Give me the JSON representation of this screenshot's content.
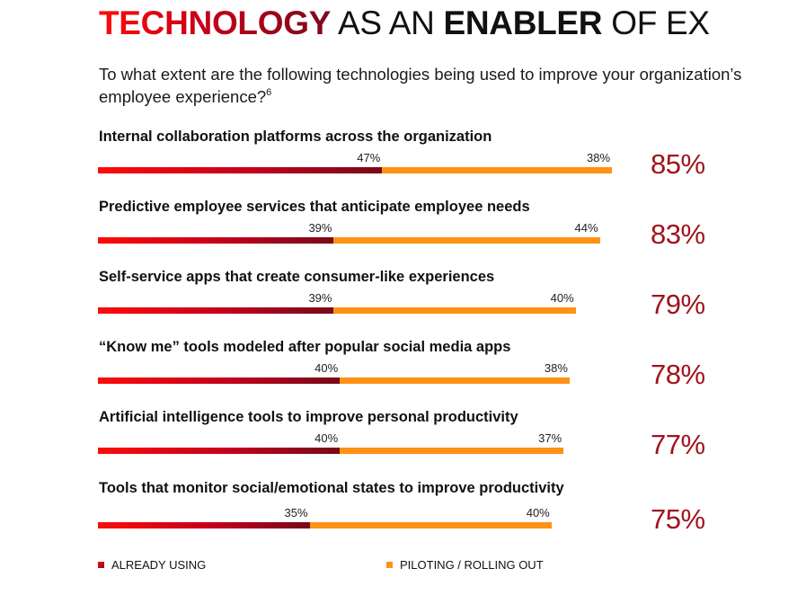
{
  "title": {
    "part1": "TECHNOLOGY",
    "part2": " AS AN ",
    "part3": "ENABLER",
    "part4": " OF EX"
  },
  "subtitle": {
    "text": "To what extent are the following technologies being used to improve your organization’s employee experience?",
    "footnote": "6"
  },
  "colors": {
    "already_using_start": "#ff0a0a",
    "already_using_end": "#760a1a",
    "piloting": "#ff9214",
    "total_text": "#a0141c"
  },
  "chart_data": {
    "type": "bar",
    "orientation": "horizontal",
    "stacked": true,
    "title": "TECHNOLOGY AS AN ENABLER OF EX",
    "subtitle": "To what extent are the following technologies being used to improve your organization’s employee experience?",
    "categories": [
      "Internal collaboration platforms across the organization",
      "Predictive employee services that anticipate employee needs",
      "Self-service apps that create consumer-like experiences",
      "“Know me” tools modeled after popular social media apps",
      "Artificial intelligence tools to improve personal productivity",
      "Tools that monitor social/emotional states to improve productivity"
    ],
    "series": [
      {
        "name": "ALREADY USING",
        "values": [
          47,
          39,
          39,
          40,
          40,
          35
        ]
      },
      {
        "name": "PILOTING / ROLLING OUT",
        "values": [
          38,
          44,
          40,
          38,
          37,
          40
        ]
      }
    ],
    "totals": [
      85,
      83,
      79,
      78,
      77,
      75
    ],
    "value_labels": {
      "already": [
        "47%",
        "39%",
        "39%",
        "40%",
        "40%",
        "35%"
      ],
      "piloting": [
        "38%",
        "44%",
        "40%",
        "38%",
        "37%",
        "40%"
      ],
      "totals": [
        "85%",
        "83%",
        "79%",
        "78%",
        "77%",
        "75%"
      ]
    },
    "unit": "%",
    "xlim": [
      0,
      100
    ],
    "grid": false,
    "legend_position": "bottom",
    "xlabel": "",
    "ylabel": ""
  },
  "legend": {
    "already_label": "ALREADY USING",
    "piloting_label": "PILOTING / ROLLING OUT"
  }
}
